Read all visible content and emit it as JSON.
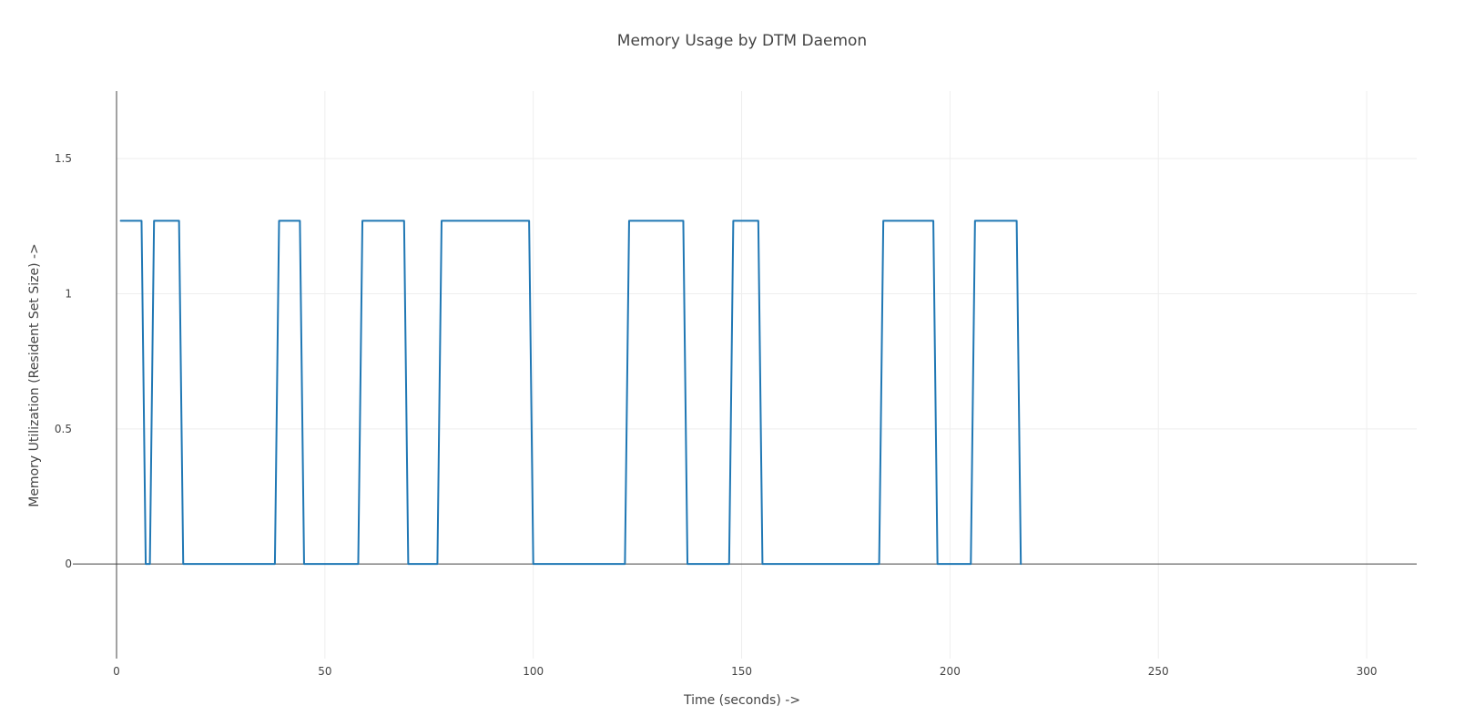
{
  "chart_data": {
    "type": "line",
    "title": "Memory Usage by DTM Daemon",
    "xlabel": "Time (seconds) ->",
    "ylabel": "Memory Utilization (Resident Set Size) ->",
    "xlim": [
      0,
      312
    ],
    "ylim": [
      -0.35,
      1.75
    ],
    "x_ticks": [
      0,
      50,
      100,
      150,
      200,
      250,
      300
    ],
    "y_ticks": [
      0,
      0.5,
      1,
      1.5
    ],
    "x_tick_labels": [
      "0",
      "50",
      "100",
      "150",
      "200",
      "250",
      "300"
    ],
    "y_tick_labels": [
      "0",
      "0.5",
      "1",
      "1.5"
    ],
    "grid": true,
    "colors": {
      "series": "#1f77b4",
      "grid": "#eeeeee",
      "axis": "#444444"
    },
    "series": [
      {
        "x": [
          1,
          6,
          7,
          8,
          9,
          15,
          16,
          38,
          39,
          44,
          45,
          58,
          59,
          69,
          70,
          77,
          78,
          99,
          100,
          122,
          123,
          136,
          137,
          147,
          148,
          154,
          155,
          183,
          184,
          196,
          197,
          205,
          206,
          216,
          217
        ],
        "y": [
          1.27,
          1.27,
          0,
          0,
          1.27,
          1.27,
          0,
          0,
          1.27,
          1.27,
          0,
          0,
          1.27,
          1.27,
          0,
          0,
          1.27,
          1.27,
          0,
          0,
          1.27,
          1.27,
          0,
          0,
          1.27,
          1.27,
          0,
          0,
          1.27,
          1.27,
          0,
          0,
          1.27,
          1.27,
          0
        ]
      }
    ]
  }
}
